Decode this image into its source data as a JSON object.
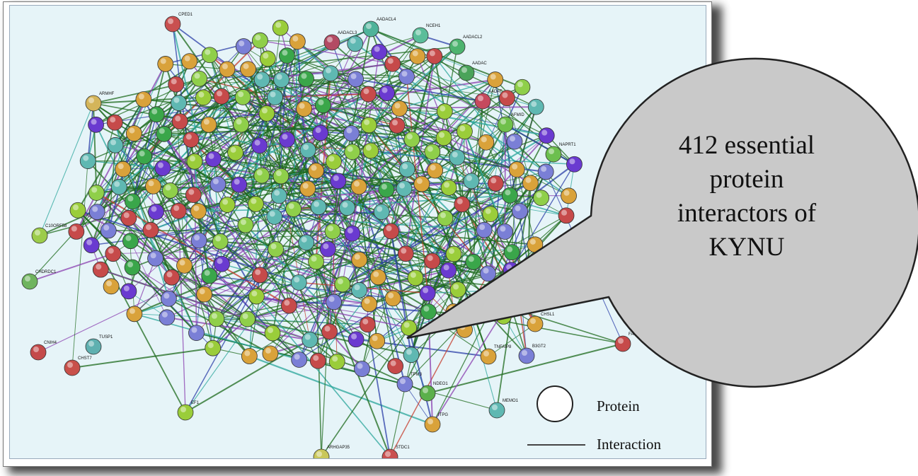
{
  "callout": {
    "lines": [
      "412 essential",
      "protein",
      "interactors of",
      "KYNU"
    ]
  },
  "legend": {
    "protein_label": "Protein",
    "interaction_label": "Interaction"
  },
  "colors": {
    "background": "#e6f4f8",
    "bubble_fill": "#c9c9c9",
    "dense_edge": "#1d6b1d",
    "coexpression_edge": "#2aa69b",
    "experimental_edge": "#8a3fb0",
    "database_edge": "#2b3fa8",
    "textmining_edge": "#c43a2a",
    "node_colors": [
      "#3aa64a",
      "#8fcf4a",
      "#c64a4a",
      "#d9a23a",
      "#5fb8b2",
      "#7a7fd6",
      "#6a3ad0",
      "#9acd3a"
    ]
  },
  "network": {
    "labeled_nodes": [
      {
        "id": "CPED1",
        "label": "CPED1",
        "color": "#c95050"
      },
      {
        "id": "AADACL4",
        "label": "AADACL4",
        "color": "#4fb39a"
      },
      {
        "id": "NCEH1",
        "label": "NCEH1",
        "color": "#5bbd9a"
      },
      {
        "id": "AADACL2",
        "label": "AADACL2",
        "color": "#4db36f"
      },
      {
        "id": "AADACL3",
        "label": "AADACL3",
        "color": "#b34b63"
      },
      {
        "id": "AADAC",
        "label": "AADAC",
        "color": "#4aa35a"
      },
      {
        "id": "AADAT",
        "label": "AADAT",
        "color": "#c64a5e"
      },
      {
        "id": "AFMID",
        "label": "AFMID",
        "color": "#6fc04a"
      },
      {
        "id": "NAPRT1",
        "label": "NAPRT1",
        "color": "#6cbf4e"
      },
      {
        "id": "ARMHF",
        "label": "ARMHF",
        "color": "#d4b55a"
      },
      {
        "id": "CT10RF58",
        "label": "C10ORF58",
        "color": "#9ccc4a"
      },
      {
        "id": "CHDRDC1",
        "label": "CHDRDC1",
        "color": "#6fb45e"
      },
      {
        "id": "CNIH4",
        "label": "CNIH4",
        "color": "#c44a4a"
      },
      {
        "id": "CHST7",
        "label": "CHST7",
        "color": "#c8504a"
      },
      {
        "id": "TUSP1",
        "label": "TUSP1",
        "color": "#5fb0b0"
      },
      {
        "id": "CHSL1",
        "label": "CHSL1",
        "color": "#d9a23a"
      },
      {
        "id": "FAM221A",
        "label": "FAM221A",
        "color": "#c64a4a"
      },
      {
        "id": "B3GT2",
        "label": "B3GT2",
        "color": "#7a7fd6"
      },
      {
        "id": "TNFAIP8",
        "label": "TNFAIP8",
        "color": "#d9a23a"
      },
      {
        "id": "MEMO1",
        "label": "MEMO1",
        "color": "#5fb8b2"
      },
      {
        "id": "ITPG",
        "label": "ITPG",
        "color": "#d9a23a"
      },
      {
        "id": "ARHGAP35",
        "label": "ARHGAP35",
        "color": "#c9c75a"
      },
      {
        "id": "STDC1",
        "label": "STDC1",
        "color": "#c95050"
      },
      {
        "id": "NDEO1",
        "label": "NDEO1",
        "color": "#5bb04a"
      },
      {
        "id": "TPM3",
        "label": "TPM3",
        "color": "#7a7fd6"
      },
      {
        "id": "EF1",
        "label": "EF1",
        "color": "#9acd3a"
      }
    ]
  }
}
